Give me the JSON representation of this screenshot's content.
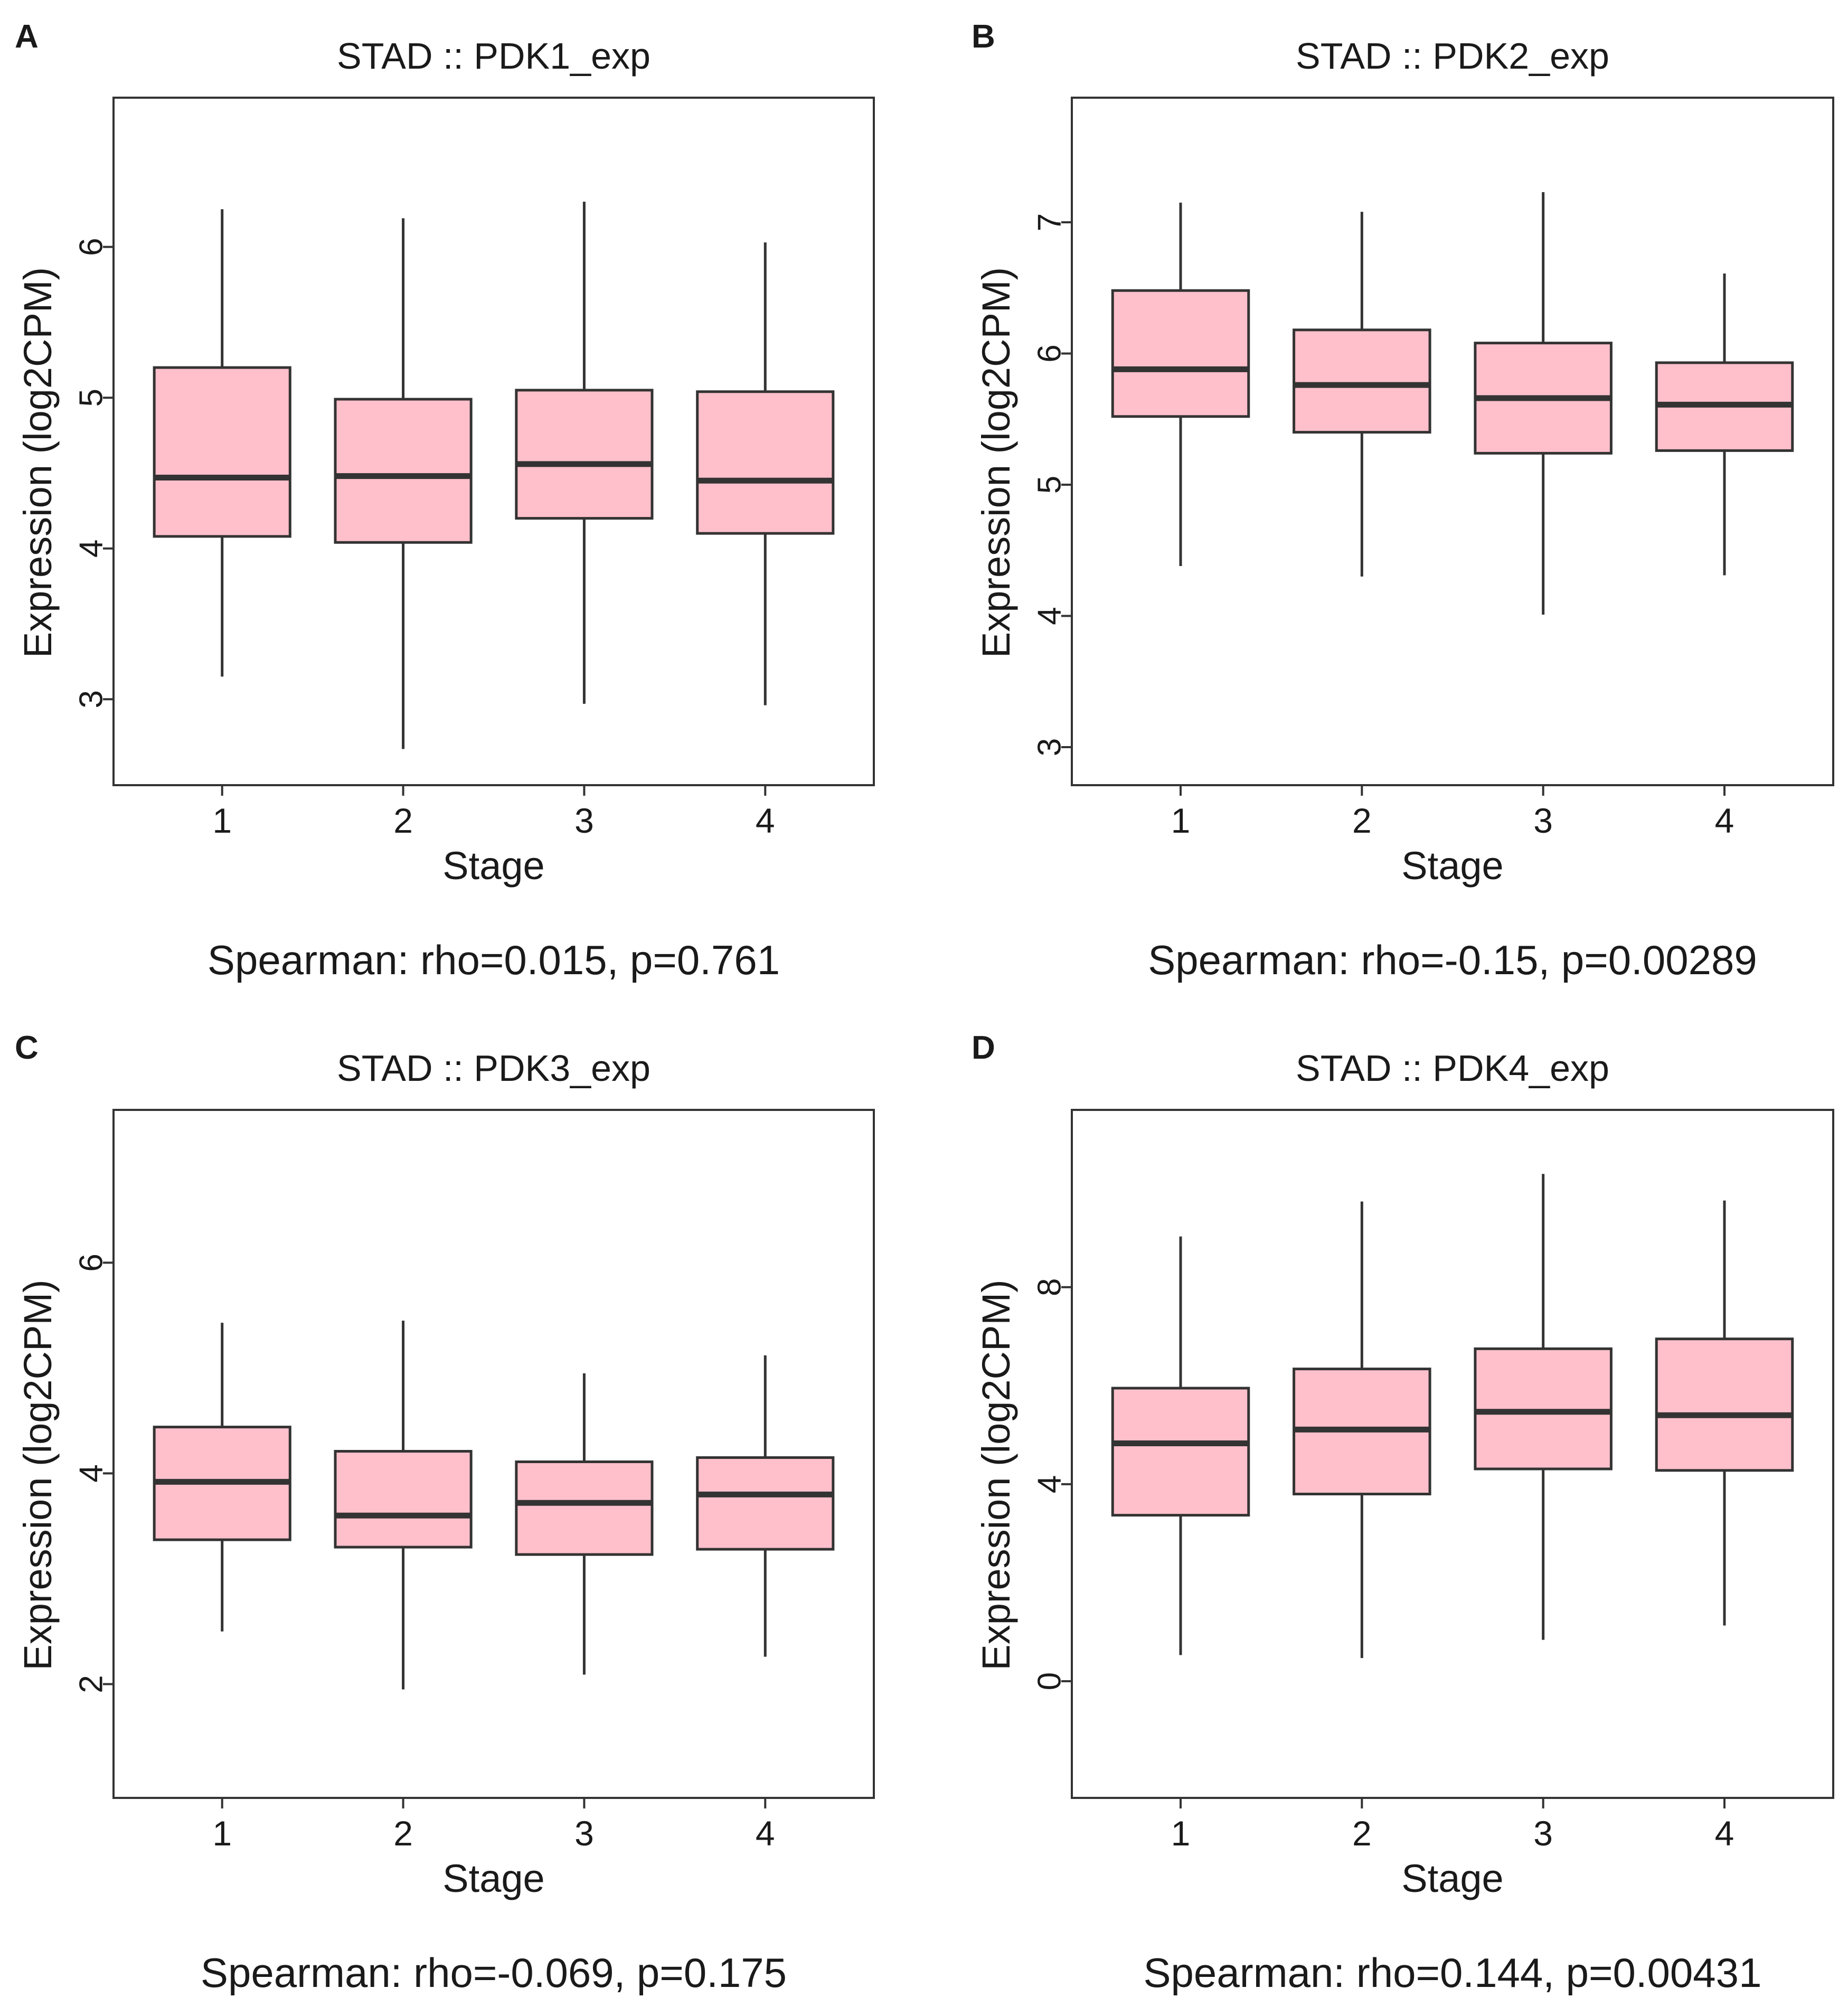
{
  "colors": {
    "box_fill": "#FFC0CB",
    "line": "#333333",
    "frame": "#333333",
    "text": "#1a1a1a"
  },
  "chart_data": [
    {
      "panel": "A",
      "type": "boxplot",
      "title": "STAD  ::  PDK1_exp",
      "xlabel": "Stage",
      "ylabel": "Expression (log2CPM)",
      "ylim": [
        2.43,
        6.99
      ],
      "yticks": [
        3,
        4,
        5,
        6
      ],
      "categories": [
        "1",
        "2",
        "3",
        "4"
      ],
      "boxes": [
        {
          "min": 3.15,
          "q1": 4.08,
          "median": 4.47,
          "q3": 5.2,
          "max": 6.25
        },
        {
          "min": 2.67,
          "q1": 4.04,
          "median": 4.48,
          "q3": 4.99,
          "max": 6.19
        },
        {
          "min": 2.97,
          "q1": 4.2,
          "median": 4.56,
          "q3": 5.05,
          "max": 6.3
        },
        {
          "min": 2.96,
          "q1": 4.1,
          "median": 4.45,
          "q3": 5.04,
          "max": 6.03
        }
      ],
      "annotation": "Spearman: rho=0.015, p=0.761"
    },
    {
      "panel": "B",
      "type": "boxplot",
      "title": "STAD  ::  PDK2_exp",
      "xlabel": "Stage",
      "ylabel": "Expression (log2CPM)",
      "ylim": [
        2.71,
        7.95
      ],
      "yticks": [
        3,
        4,
        5,
        6,
        7
      ],
      "categories": [
        "1",
        "2",
        "3",
        "4"
      ],
      "boxes": [
        {
          "min": 4.38,
          "q1": 5.52,
          "median": 5.88,
          "q3": 6.48,
          "max": 7.15
        },
        {
          "min": 4.3,
          "q1": 5.4,
          "median": 5.76,
          "q3": 6.18,
          "max": 7.08
        },
        {
          "min": 4.01,
          "q1": 5.24,
          "median": 5.66,
          "q3": 6.08,
          "max": 7.23
        },
        {
          "min": 4.31,
          "q1": 5.26,
          "median": 5.61,
          "q3": 5.93,
          "max": 6.61
        }
      ],
      "annotation": "Spearman: rho=-0.15, p=0.00289"
    },
    {
      "panel": "C",
      "type": "boxplot",
      "title": "STAD  ::  PDK3_exp",
      "xlabel": "Stage",
      "ylabel": "Expression (log2CPM)",
      "ylim": [
        0.92,
        7.45
      ],
      "yticks": [
        2,
        4,
        6
      ],
      "categories": [
        "1",
        "2",
        "3",
        "4"
      ],
      "boxes": [
        {
          "min": 2.5,
          "q1": 3.37,
          "median": 3.92,
          "q3": 4.44,
          "max": 5.43
        },
        {
          "min": 1.95,
          "q1": 3.3,
          "median": 3.6,
          "q3": 4.21,
          "max": 5.45
        },
        {
          "min": 2.09,
          "q1": 3.23,
          "median": 3.72,
          "q3": 4.11,
          "max": 4.95
        },
        {
          "min": 2.26,
          "q1": 3.28,
          "median": 3.8,
          "q3": 4.15,
          "max": 5.12
        }
      ],
      "annotation": "Spearman: rho=-0.069, p=0.175"
    },
    {
      "panel": "D",
      "type": "boxplot",
      "title": "STAD  ::  PDK4_exp",
      "xlabel": "Stage",
      "ylabel": "Expression (log2CPM)",
      "ylim": [
        -2.37,
        11.6
      ],
      "yticks": [
        0,
        4,
        8
      ],
      "categories": [
        "1",
        "2",
        "3",
        "4"
      ],
      "boxes": [
        {
          "min": 0.53,
          "q1": 3.37,
          "median": 4.83,
          "q3": 5.95,
          "max": 9.03
        },
        {
          "min": 0.47,
          "q1": 3.8,
          "median": 5.11,
          "q3": 6.34,
          "max": 9.74
        },
        {
          "min": 0.84,
          "q1": 4.31,
          "median": 5.47,
          "q3": 6.75,
          "max": 10.3
        },
        {
          "min": 1.13,
          "q1": 4.28,
          "median": 5.4,
          "q3": 6.95,
          "max": 9.76
        }
      ],
      "annotation": "Spearman: rho=0.144, p=0.00431"
    }
  ]
}
